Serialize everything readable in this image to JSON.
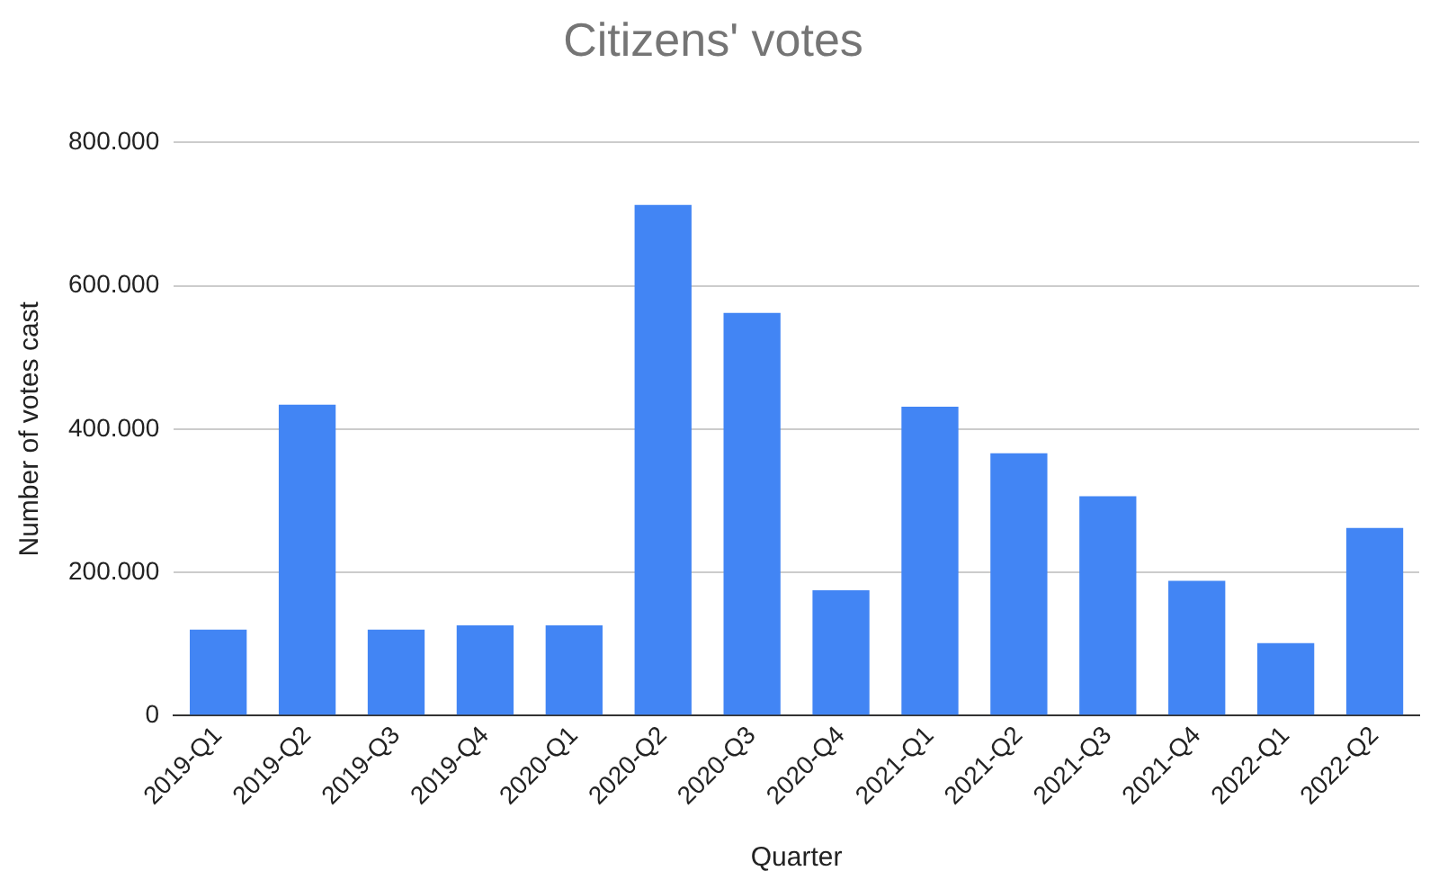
{
  "chart_data": {
    "type": "bar",
    "title": "Citizens' votes",
    "xlabel": "Quarter",
    "ylabel": "Number of votes cast",
    "categories": [
      "2019-Q1",
      "2019-Q2",
      "2019-Q3",
      "2019-Q4",
      "2020-Q1",
      "2020-Q2",
      "2020-Q3",
      "2020-Q4",
      "2021-Q1",
      "2021-Q2",
      "2021-Q3",
      "2021-Q4",
      "2022-Q1",
      "2022-Q2"
    ],
    "values": [
      120000,
      434000,
      120000,
      126000,
      126000,
      713000,
      562000,
      175000,
      431000,
      366000,
      306000,
      188000,
      101000,
      262000
    ],
    "color": "#4285f4",
    "ylim": [
      0,
      800000
    ],
    "yticks": [
      {
        "value": 0,
        "label": "0"
      },
      {
        "value": 200000,
        "label": "200.000"
      },
      {
        "value": 400000,
        "label": "400.000"
      },
      {
        "value": 600000,
        "label": "600.000"
      },
      {
        "value": 800000,
        "label": "800.000"
      }
    ],
    "grid": "y"
  }
}
